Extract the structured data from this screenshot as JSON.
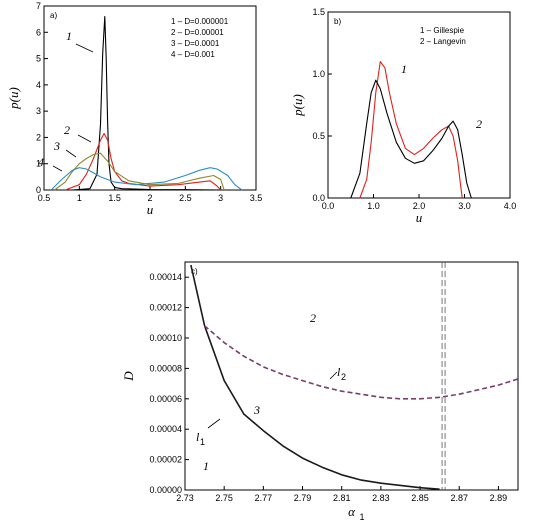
{
  "chart_data": [
    {
      "panel": "a)",
      "type": "line",
      "xlabel": "u",
      "ylabel": "p(u)",
      "xlim": [
        0.5,
        3.5
      ],
      "ylim": [
        0,
        7
      ],
      "xticks": [
        "0.5",
        "1",
        "1.5",
        "2",
        "2.5",
        "3",
        "3.5"
      ],
      "yticks": [
        "0",
        "1",
        "2",
        "3",
        "4",
        "5",
        "6",
        "7"
      ],
      "legend": [
        "1 – D=0.000001",
        "2 – D=0.00001",
        "3 – D=0.0001",
        "4 – D=0.001"
      ],
      "annotations": [
        "1",
        "2",
        "3",
        "4"
      ],
      "series": [
        {
          "name": "1 – D=0.000001",
          "color": "#000000",
          "x": [
            0.9,
            1.15,
            1.25,
            1.3,
            1.33,
            1.36,
            1.38,
            1.4,
            1.42,
            1.45,
            1.5,
            1.6,
            2.0,
            2.5,
            3.0
          ],
          "y": [
            0,
            0.05,
            0.6,
            2.5,
            5.2,
            6.6,
            5.0,
            2.6,
            1.0,
            0.3,
            0.1,
            0.05,
            0.02,
            0.01,
            0
          ]
        },
        {
          "name": "2 – D=0.00001",
          "color": "#e0201b",
          "x": [
            0.8,
            1.0,
            1.1,
            1.2,
            1.3,
            1.35,
            1.4,
            1.45,
            1.5,
            1.6,
            1.7,
            2.0,
            2.4,
            2.7,
            2.85,
            2.95,
            3.0
          ],
          "y": [
            0,
            0.2,
            0.6,
            1.2,
            1.9,
            2.15,
            1.9,
            1.2,
            0.7,
            0.35,
            0.25,
            0.15,
            0.2,
            0.3,
            0.35,
            0.15,
            0
          ]
        },
        {
          "name": "3 – D=0.0001",
          "color": "#8a8a2a",
          "x": [
            0.65,
            0.8,
            0.9,
            1.0,
            1.1,
            1.2,
            1.3,
            1.4,
            1.5,
            1.7,
            2.0,
            2.4,
            2.7,
            2.9,
            3.0,
            3.05
          ],
          "y": [
            0,
            0.3,
            0.7,
            1.0,
            1.2,
            1.35,
            1.4,
            1.1,
            0.7,
            0.35,
            0.2,
            0.25,
            0.45,
            0.55,
            0.4,
            0
          ]
        },
        {
          "name": "4 – D=0.001",
          "color": "#2e8fbf",
          "x": [
            0.6,
            0.75,
            0.9,
            1.0,
            1.1,
            1.2,
            1.3,
            1.5,
            1.8,
            2.2,
            2.5,
            2.7,
            2.85,
            2.95,
            3.1,
            3.2,
            3.3
          ],
          "y": [
            0,
            0.4,
            0.75,
            0.85,
            0.8,
            0.65,
            0.5,
            0.3,
            0.2,
            0.3,
            0.55,
            0.75,
            0.85,
            0.8,
            0.55,
            0.2,
            0
          ]
        }
      ]
    },
    {
      "panel": "b)",
      "type": "line",
      "xlabel": "u",
      "ylabel": "p(u)",
      "xlim": [
        0,
        4
      ],
      "ylim": [
        0,
        1.5
      ],
      "xticks": [
        "0.0",
        "1.0",
        "2.0",
        "3.0",
        "4.0"
      ],
      "yticks": [
        "0.0",
        "0.5",
        "1.0",
        "1.5"
      ],
      "legend": [
        "1 – Gillespie",
        "2 – Langevin"
      ],
      "annotations": [
        "1",
        "2"
      ],
      "series": [
        {
          "name": "1 – Gillespie",
          "color": "#e0201b",
          "x": [
            0.7,
            0.85,
            0.95,
            1.05,
            1.15,
            1.25,
            1.35,
            1.5,
            1.7,
            1.9,
            2.1,
            2.3,
            2.5,
            2.65,
            2.75,
            2.85,
            2.9,
            2.95
          ],
          "y": [
            0,
            0.15,
            0.45,
            0.85,
            1.1,
            1.05,
            0.85,
            0.6,
            0.4,
            0.35,
            0.4,
            0.48,
            0.55,
            0.58,
            0.5,
            0.3,
            0.15,
            0
          ]
        },
        {
          "name": "2 – Langevin",
          "color": "#000000",
          "x": [
            0.5,
            0.7,
            0.85,
            0.95,
            1.05,
            1.15,
            1.3,
            1.5,
            1.7,
            1.9,
            2.1,
            2.3,
            2.5,
            2.65,
            2.75,
            2.85,
            2.95,
            3.05,
            3.15
          ],
          "y": [
            0,
            0.2,
            0.6,
            0.85,
            0.95,
            0.88,
            0.68,
            0.45,
            0.32,
            0.28,
            0.3,
            0.38,
            0.48,
            0.58,
            0.62,
            0.55,
            0.35,
            0.12,
            0
          ]
        }
      ]
    },
    {
      "panel": "c)",
      "type": "line",
      "xlabel": "α",
      "xlabel_sub": "1",
      "ylabel": "D",
      "xlim": [
        2.73,
        2.9
      ],
      "ylim": [
        0,
        0.00015
      ],
      "xticks": [
        "2.73",
        "2.75",
        "2.77",
        "2.79",
        "2.81",
        "2.83",
        "2.85",
        "2.87",
        "2.89"
      ],
      "yticks": [
        "0.00000",
        "0.00002",
        "0.00004",
        "0.00006",
        "0.00008",
        "0.00010",
        "0.00012",
        "0.00014"
      ],
      "vline": 2.862,
      "regions": [
        "1",
        "2",
        "3"
      ],
      "curve_labels": [
        {
          "text": "l",
          "sub": "1"
        },
        {
          "text": "l",
          "sub": "2"
        }
      ],
      "series": [
        {
          "name": "l1",
          "color": "#1a1a1a",
          "style": "solid",
          "x": [
            2.733,
            2.74,
            2.75,
            2.76,
            2.77,
            2.78,
            2.79,
            2.8,
            2.81,
            2.82,
            2.83,
            2.84,
            2.85,
            2.86
          ],
          "y": [
            0.000148,
            0.000108,
            7.2e-05,
            5e-05,
            3.9e-05,
            2.9e-05,
            2.1e-05,
            1.5e-05,
            1e-05,
            6.5e-06,
            4.5e-06,
            3e-06,
            1.5e-06,
            5e-07
          ]
        },
        {
          "name": "l2",
          "color": "#7a3d6e",
          "style": "dashed",
          "x": [
            2.74,
            2.75,
            2.76,
            2.77,
            2.78,
            2.79,
            2.8,
            2.81,
            2.82,
            2.83,
            2.84,
            2.85,
            2.86,
            2.87,
            2.88,
            2.89,
            2.9
          ],
          "y": [
            0.000108,
            9.7e-05,
            8.8e-05,
            8.1e-05,
            7.6e-05,
            7.2e-05,
            6.8e-05,
            6.5e-05,
            6.3e-05,
            6.1e-05,
            6e-05,
            6e-05,
            6.1e-05,
            6.3e-05,
            6.6e-05,
            6.9e-05,
            7.3e-05
          ]
        }
      ]
    }
  ]
}
